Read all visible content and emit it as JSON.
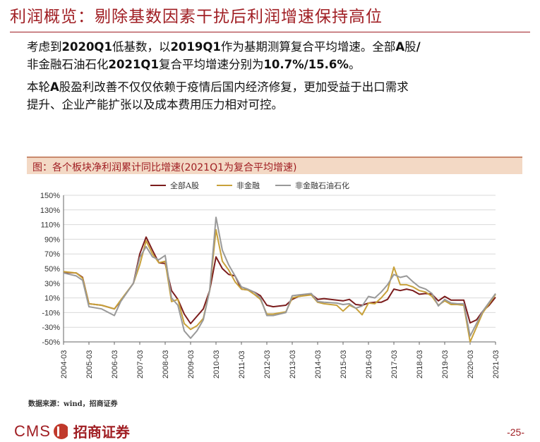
{
  "header": {
    "title": "利润概览：剔除基数因素干扰后利润增速保持高位"
  },
  "bullets": [
    {
      "parts": [
        {
          "text": "考虑到",
          "bold": false
        },
        {
          "text": "2020Q1",
          "bold": true
        },
        {
          "text": "低基数，以",
          "bold": false
        },
        {
          "text": "2019Q1",
          "bold": true
        },
        {
          "text": "作为基期测算复合平均增速。全部",
          "bold": false
        },
        {
          "text": "A",
          "bold": true
        },
        {
          "text": "股",
          "bold": false
        },
        {
          "text": "/",
          "bold": true
        },
        {
          "text": "\n非金融石油石化",
          "bold": false
        },
        {
          "text": "2021Q1",
          "bold": true
        },
        {
          "text": "复合平均增速分别为",
          "bold": false
        },
        {
          "text": "10.7%/15.6%",
          "bold": true
        },
        {
          "text": "。",
          "bold": false
        }
      ]
    },
    {
      "parts": [
        {
          "text": "本轮",
          "bold": false
        },
        {
          "text": "A",
          "bold": true
        },
        {
          "text": "股盈利改善不仅仅依赖于疫情后国内经济修复，更加受益于出口需求\n提升、企业产能扩张以及成本费用压力相对可控。",
          "bold": false
        }
      ]
    }
  ],
  "chart_title": "图：各个板块净利润累计同比增速(2021Q1为复合平均增速)",
  "source": "数据来源：wind，招商证券",
  "footer": {
    "brand_en": "CMS",
    "brand_cn": "招商证券",
    "page_number": "-25-"
  },
  "colors": {
    "brand": "#a01e23",
    "header_band": "#f3d9c5"
  },
  "chart_data": {
    "type": "line",
    "yticks": [
      150,
      130,
      110,
      90,
      70,
      50,
      30,
      10,
      -10,
      -30,
      -50
    ],
    "ytick_labels": [
      "150%",
      "130%",
      "110%",
      "90%",
      "70%",
      "50%",
      "30%",
      "10%",
      "-10%",
      "-30%",
      "-50%"
    ],
    "ylim": [
      -50,
      150
    ],
    "x_start": "2004-03",
    "x_end": "2021-03",
    "xticks": [
      "2004-03",
      "2005-03",
      "2006-03",
      "2007-03",
      "2008-03",
      "2009-03",
      "2010-03",
      "2011-03",
      "2012-03",
      "2013-03",
      "2014-03",
      "2015-03",
      "2016-03",
      "2017-03",
      "2018-03",
      "2019-03",
      "2020-03",
      "2021-03"
    ],
    "grid": true,
    "legend_position": "top",
    "series": [
      {
        "name": "全部A股",
        "color": "#7b1c1c",
        "points": [
          [
            "2004-03",
            45
          ],
          [
            "2004-09",
            44
          ],
          [
            "2004-12",
            38
          ],
          [
            "2005-03",
            2
          ],
          [
            "2005-09",
            0
          ],
          [
            "2006-03",
            -5
          ],
          [
            "2006-06",
            6
          ],
          [
            "2006-12",
            30
          ],
          [
            "2007-03",
            70
          ],
          [
            "2007-06",
            93
          ],
          [
            "2007-09",
            75
          ],
          [
            "2007-12",
            58
          ],
          [
            "2008-03",
            57
          ],
          [
            "2008-06",
            20
          ],
          [
            "2008-09",
            8
          ],
          [
            "2008-12",
            -12
          ],
          [
            "2009-03",
            -25
          ],
          [
            "2009-06",
            -15
          ],
          [
            "2009-09",
            -5
          ],
          [
            "2009-12",
            20
          ],
          [
            "2010-03",
            66
          ],
          [
            "2010-06",
            50
          ],
          [
            "2010-09",
            42
          ],
          [
            "2010-12",
            40
          ],
          [
            "2011-03",
            22
          ],
          [
            "2011-06",
            21
          ],
          [
            "2011-09",
            18
          ],
          [
            "2011-12",
            13
          ],
          [
            "2012-03",
            0
          ],
          [
            "2012-06",
            -2
          ],
          [
            "2012-12",
            0
          ],
          [
            "2013-03",
            8
          ],
          [
            "2013-06",
            12
          ],
          [
            "2013-12",
            15
          ],
          [
            "2014-03",
            8
          ],
          [
            "2014-06",
            9
          ],
          [
            "2014-12",
            7
          ],
          [
            "2015-03",
            6
          ],
          [
            "2015-06",
            8
          ],
          [
            "2015-09",
            1
          ],
          [
            "2015-12",
            0
          ],
          [
            "2016-03",
            3
          ],
          [
            "2016-06",
            4
          ],
          [
            "2016-09",
            4
          ],
          [
            "2016-12",
            8
          ],
          [
            "2017-03",
            22
          ],
          [
            "2017-06",
            20
          ],
          [
            "2017-09",
            22
          ],
          [
            "2017-12",
            20
          ],
          [
            "2018-03",
            15
          ],
          [
            "2018-06",
            16
          ],
          [
            "2018-09",
            15
          ],
          [
            "2018-12",
            6
          ],
          [
            "2019-03",
            12
          ],
          [
            "2019-06",
            7
          ],
          [
            "2019-09",
            7
          ],
          [
            "2019-12",
            7
          ],
          [
            "2020-03",
            -24
          ],
          [
            "2020-06",
            -20
          ],
          [
            "2020-09",
            -8
          ],
          [
            "2020-12",
            0
          ],
          [
            "2021-03",
            11
          ]
        ]
      },
      {
        "name": "非金融",
        "color": "#c8a13a",
        "points": [
          [
            "2004-03",
            46
          ],
          [
            "2004-09",
            44
          ],
          [
            "2004-12",
            37
          ],
          [
            "2005-03",
            2
          ],
          [
            "2005-09",
            0
          ],
          [
            "2006-03",
            -5
          ],
          [
            "2006-06",
            7
          ],
          [
            "2006-12",
            30
          ],
          [
            "2007-03",
            55
          ],
          [
            "2007-06",
            88
          ],
          [
            "2007-09",
            70
          ],
          [
            "2007-12",
            58
          ],
          [
            "2008-03",
            60
          ],
          [
            "2008-06",
            5
          ],
          [
            "2008-09",
            8
          ],
          [
            "2008-12",
            -25
          ],
          [
            "2009-03",
            -33
          ],
          [
            "2009-06",
            -28
          ],
          [
            "2009-09",
            -18
          ],
          [
            "2009-12",
            20
          ],
          [
            "2010-03",
            103
          ],
          [
            "2010-06",
            60
          ],
          [
            "2010-09",
            48
          ],
          [
            "2010-12",
            32
          ],
          [
            "2011-03",
            22
          ],
          [
            "2011-06",
            21
          ],
          [
            "2011-09",
            15
          ],
          [
            "2011-12",
            8
          ],
          [
            "2012-03",
            -12
          ],
          [
            "2012-06",
            -12
          ],
          [
            "2012-12",
            -9
          ],
          [
            "2013-03",
            10
          ],
          [
            "2013-06",
            12
          ],
          [
            "2013-12",
            14
          ],
          [
            "2014-03",
            4
          ],
          [
            "2014-06",
            2
          ],
          [
            "2014-12",
            0
          ],
          [
            "2015-03",
            -8
          ],
          [
            "2015-06",
            0
          ],
          [
            "2015-09",
            -4
          ],
          [
            "2015-12",
            -13
          ],
          [
            "2016-03",
            3
          ],
          [
            "2016-06",
            2
          ],
          [
            "2016-09",
            10
          ],
          [
            "2016-12",
            20
          ],
          [
            "2017-03",
            52
          ],
          [
            "2017-06",
            28
          ],
          [
            "2017-09",
            28
          ],
          [
            "2017-12",
            25
          ],
          [
            "2018-03",
            20
          ],
          [
            "2018-06",
            18
          ],
          [
            "2018-09",
            12
          ],
          [
            "2018-12",
            0
          ],
          [
            "2019-03",
            6
          ],
          [
            "2019-06",
            1
          ],
          [
            "2019-09",
            1
          ],
          [
            "2019-12",
            0
          ],
          [
            "2020-03",
            -50
          ],
          [
            "2020-06",
            -30
          ],
          [
            "2020-09",
            -10
          ],
          [
            "2020-12",
            2
          ],
          [
            "2021-03",
            15
          ]
        ]
      },
      {
        "name": "非金融石油石化",
        "color": "#999999",
        "points": [
          [
            "2004-03",
            44
          ],
          [
            "2004-09",
            40
          ],
          [
            "2004-12",
            34
          ],
          [
            "2005-03",
            -2
          ],
          [
            "2005-09",
            -5
          ],
          [
            "2006-03",
            -14
          ],
          [
            "2006-06",
            5
          ],
          [
            "2006-12",
            30
          ],
          [
            "2007-03",
            65
          ],
          [
            "2007-06",
            80
          ],
          [
            "2007-09",
            66
          ],
          [
            "2007-12",
            62
          ],
          [
            "2008-03",
            68
          ],
          [
            "2008-06",
            10
          ],
          [
            "2008-09",
            0
          ],
          [
            "2008-12",
            -35
          ],
          [
            "2009-03",
            -45
          ],
          [
            "2009-06",
            -35
          ],
          [
            "2009-09",
            -20
          ],
          [
            "2009-12",
            20
          ],
          [
            "2010-03",
            120
          ],
          [
            "2010-06",
            75
          ],
          [
            "2010-09",
            55
          ],
          [
            "2010-12",
            40
          ],
          [
            "2011-03",
            25
          ],
          [
            "2011-06",
            22
          ],
          [
            "2011-09",
            18
          ],
          [
            "2011-12",
            10
          ],
          [
            "2012-03",
            -14
          ],
          [
            "2012-06",
            -14
          ],
          [
            "2012-12",
            -10
          ],
          [
            "2013-03",
            13
          ],
          [
            "2013-06",
            14
          ],
          [
            "2013-12",
            16
          ],
          [
            "2014-03",
            5
          ],
          [
            "2014-06",
            4
          ],
          [
            "2014-12",
            3
          ],
          [
            "2015-03",
            1
          ],
          [
            "2015-06",
            2
          ],
          [
            "2015-09",
            -4
          ],
          [
            "2015-12",
            -1
          ],
          [
            "2016-03",
            12
          ],
          [
            "2016-06",
            10
          ],
          [
            "2016-09",
            18
          ],
          [
            "2016-12",
            28
          ],
          [
            "2017-03",
            42
          ],
          [
            "2017-06",
            38
          ],
          [
            "2017-09",
            40
          ],
          [
            "2017-12",
            32
          ],
          [
            "2018-03",
            25
          ],
          [
            "2018-06",
            22
          ],
          [
            "2018-09",
            16
          ],
          [
            "2018-12",
            -1
          ],
          [
            "2019-03",
            8
          ],
          [
            "2019-06",
            3
          ],
          [
            "2019-09",
            2
          ],
          [
            "2019-12",
            2
          ],
          [
            "2020-03",
            -42
          ],
          [
            "2020-06",
            -25
          ],
          [
            "2020-09",
            -8
          ],
          [
            "2020-12",
            4
          ],
          [
            "2021-03",
            16
          ]
        ]
      }
    ]
  }
}
